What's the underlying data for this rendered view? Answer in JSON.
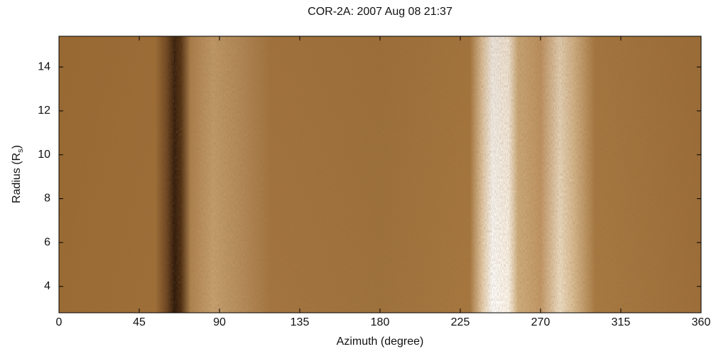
{
  "chart_data": {
    "type": "image",
    "title": "COR-2A: 2007 Aug 08 21:37",
    "x_label": "Azimuth (degree)",
    "y_label": {
      "text": "Radius (R",
      "subscript": "s",
      "suffix": ")"
    },
    "xlim": [
      0,
      360
    ],
    "xticks": [
      0,
      45,
      90,
      135,
      180,
      225,
      270,
      315,
      360
    ],
    "ylim": [
      2.8,
      15.4
    ],
    "yticks": [
      4,
      6,
      8,
      10,
      12,
      14
    ]
  }
}
